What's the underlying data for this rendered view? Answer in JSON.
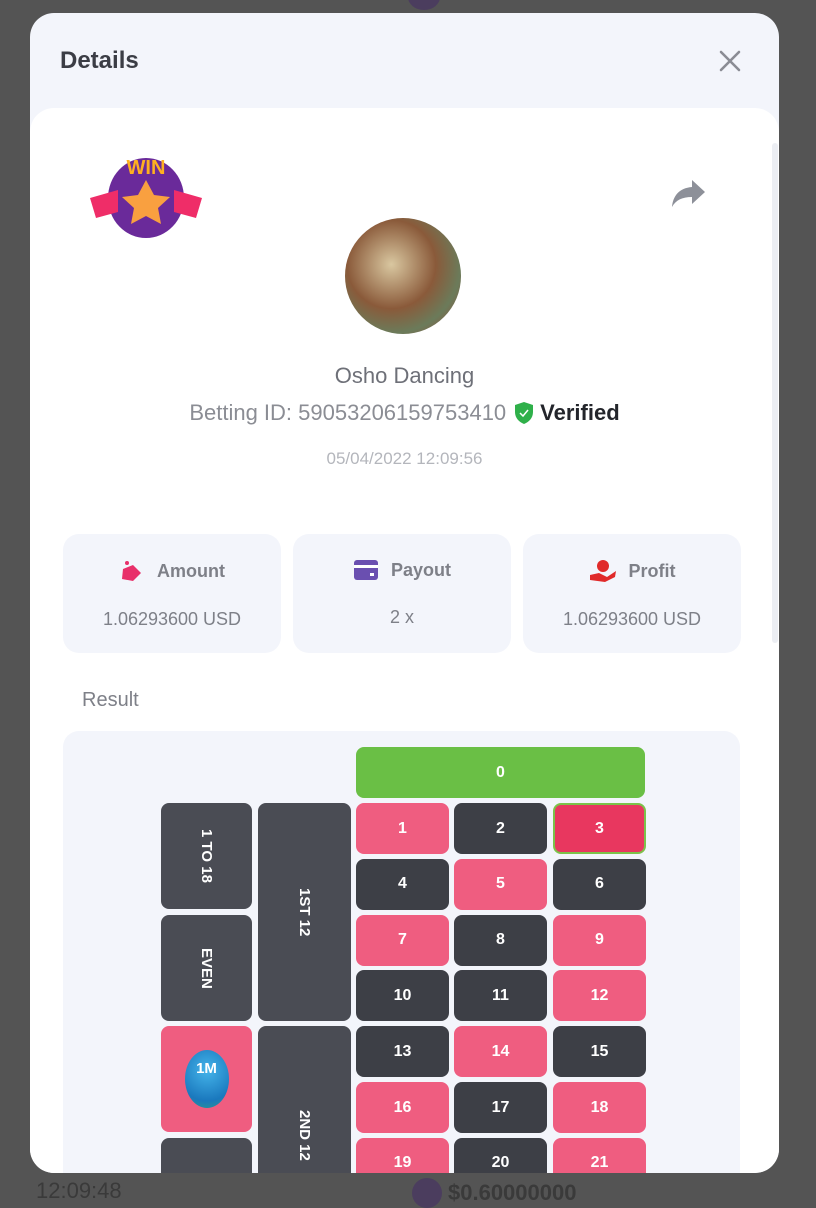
{
  "background": {
    "time": "12:09:48",
    "amount": "$0.60000000"
  },
  "modal": {
    "title": "Details",
    "badge": "WIN",
    "player_name": "Osho Dancing",
    "betting_id": "Betting ID: 59053206159753410",
    "verified_label": "Verified",
    "date": "05/04/2022 12:09:56",
    "stats": [
      {
        "label": "Amount",
        "value": "1.06293600 USD",
        "icon": "money-bag-icon",
        "color": "#e8306a"
      },
      {
        "label": "Payout",
        "value": "2 x",
        "icon": "wallet-icon",
        "color": "#6a4fb0"
      },
      {
        "label": "Profit",
        "value": "1.06293600 USD",
        "icon": "hand-coin-icon",
        "color": "#e02a2a"
      }
    ],
    "result_label": "Result",
    "board": {
      "zero": "0",
      "numbers": [
        "1",
        "2",
        "3",
        "4",
        "5",
        "6",
        "7",
        "8",
        "9",
        "10",
        "11",
        "12",
        "13",
        "14",
        "15",
        "16",
        "17",
        "18",
        "19",
        "20",
        "21"
      ],
      "red_numbers": [
        1,
        3,
        5,
        7,
        9,
        12,
        14,
        16,
        18,
        19,
        21
      ],
      "winning_number": "3",
      "outside": {
        "low": "1 TO 18",
        "even": "EVEN",
        "dozen1": "1ST 12",
        "dozen2": "2ND 12"
      },
      "chip": "1M",
      "colors": {
        "red": "#ef5d80",
        "dark": "#3d3f46",
        "green": "#6abf45",
        "winning": "#e8375f"
      }
    }
  }
}
